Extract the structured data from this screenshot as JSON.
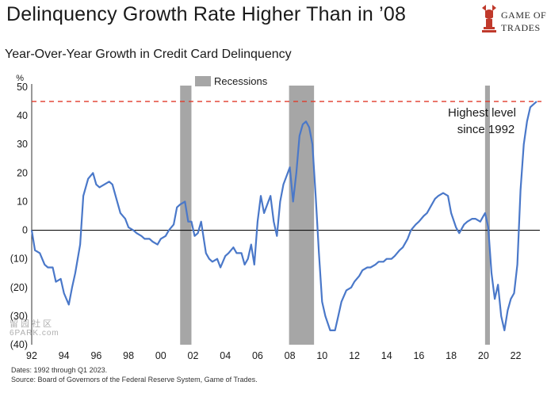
{
  "header": {
    "title": "Delinquency Growth Rate Higher Than in ’08",
    "logo_line1": "GAME OF",
    "logo_line2": "TRADES",
    "logo_color": "#c0392b"
  },
  "footer": {
    "dates_note": "Dates: 1992 through Q1 2023.",
    "source_note": "Source: Board of Governors of the Federal Reserve System, Game of Trades."
  },
  "watermark": {
    "line1": "留 园 社 区",
    "line2": "6PARK.com"
  },
  "chart_data": {
    "type": "line",
    "title": "Year-Over-Year Growth in Credit Card Delinquency",
    "ylabel": "%",
    "xlabel": "",
    "ylim": [
      -40,
      50
    ],
    "xlim": [
      1992,
      2023.3
    ],
    "yticks": [
      "50",
      "40",
      "30",
      "20",
      "10",
      "0",
      "(10)",
      "(20)",
      "(30)",
      "(40)"
    ],
    "xticks": [
      "92",
      "94",
      "96",
      "98",
      "00",
      "02",
      "04",
      "06",
      "08",
      "10",
      "12",
      "14",
      "16",
      "18",
      "20",
      "22"
    ],
    "legend": {
      "label": "Recessions",
      "placement": "top-center",
      "color": "#a6a6a6"
    },
    "recessions": [
      [
        2001.2,
        2001.9
      ],
      [
        2007.95,
        2009.5
      ],
      [
        2020.1,
        2020.4
      ]
    ],
    "reference_line": {
      "value": 45,
      "color": "#e03a2a",
      "style": "dashed"
    },
    "annotation": {
      "line1": "Highest level",
      "line2": "since 1992"
    },
    "line_color": "#4a78c9",
    "grid": false,
    "series": [
      {
        "x": [
          1992.0,
          1992.2,
          1992.5,
          1992.8,
          1993.0,
          1993.3,
          1993.5,
          1993.8,
          1994.0,
          1994.3,
          1994.5,
          1994.7,
          1995.0,
          1995.2,
          1995.5,
          1995.8,
          1996.0,
          1996.2,
          1996.5,
          1996.8,
          1997.0,
          1997.2,
          1997.5,
          1997.8,
          1998.0,
          1998.3,
          1998.5,
          1998.8,
          1999.0,
          1999.3,
          1999.5,
          1999.8,
          2000.0,
          2000.3,
          2000.5,
          2000.8,
          2001.0,
          2001.2,
          2001.5,
          2001.7,
          2001.9,
          2002.1,
          2002.3,
          2002.5,
          2002.8,
          2003.0,
          2003.2,
          2003.5,
          2003.7,
          2004.0,
          2004.2,
          2004.5,
          2004.7,
          2005.0,
          2005.2,
          2005.4,
          2005.6,
          2005.8,
          2006.0,
          2006.2,
          2006.4,
          2006.6,
          2006.8,
          2007.0,
          2007.2,
          2007.4,
          2007.6,
          2007.8,
          2008.0,
          2008.2,
          2008.4,
          2008.6,
          2008.8,
          2009.0,
          2009.2,
          2009.4,
          2009.6,
          2009.8,
          2010.0,
          2010.2,
          2010.5,
          2010.8,
          2011.0,
          2011.2,
          2011.5,
          2011.8,
          2012.0,
          2012.3,
          2012.5,
          2012.8,
          2013.0,
          2013.3,
          2013.5,
          2013.8,
          2014.0,
          2014.3,
          2014.5,
          2014.8,
          2015.0,
          2015.3,
          2015.5,
          2015.8,
          2016.0,
          2016.3,
          2016.5,
          2016.8,
          2017.0,
          2017.2,
          2017.5,
          2017.8,
          2018.0,
          2018.3,
          2018.5,
          2018.8,
          2019.0,
          2019.3,
          2019.5,
          2019.8,
          2020.0,
          2020.1,
          2020.3,
          2020.5,
          2020.7,
          2020.9,
          2021.1,
          2021.3,
          2021.5,
          2021.7,
          2021.9,
          2022.1,
          2022.3,
          2022.5,
          2022.7,
          2022.9,
          2023.1,
          2023.3
        ],
        "y": [
          0,
          -7,
          -8,
          -12,
          -13,
          -13,
          -18,
          -17,
          -22,
          -26,
          -20,
          -15,
          -5,
          12,
          18,
          20,
          16,
          15,
          16,
          17,
          16,
          12,
          6,
          4,
          1,
          0,
          -1,
          -2,
          -3,
          -3,
          -4,
          -5,
          -3,
          -2,
          0,
          2,
          8,
          9,
          10,
          3,
          3,
          -2,
          -1,
          3,
          -8,
          -10,
          -11,
          -10,
          -13,
          -9,
          -8,
          -6,
          -8,
          -8,
          -12,
          -10,
          -5,
          -12,
          3,
          12,
          6,
          9,
          12,
          3,
          -2,
          10,
          16,
          19,
          22,
          10,
          20,
          33,
          37,
          38,
          36,
          30,
          12,
          -8,
          -25,
          -30,
          -35,
          -35,
          -30,
          -25,
          -21,
          -20,
          -18,
          -16,
          -14,
          -13,
          -13,
          -12,
          -11,
          -11,
          -10,
          -10,
          -9,
          -7,
          -6,
          -3,
          0,
          2,
          3,
          5,
          6,
          9,
          11,
          12,
          13,
          12,
          6,
          1,
          -1,
          2,
          3,
          4,
          4,
          3,
          5,
          6,
          1,
          -15,
          -24,
          -19,
          -30,
          -35,
          -28,
          -24,
          -22,
          -12,
          14,
          30,
          38,
          43,
          44,
          45
        ]
      }
    ]
  }
}
